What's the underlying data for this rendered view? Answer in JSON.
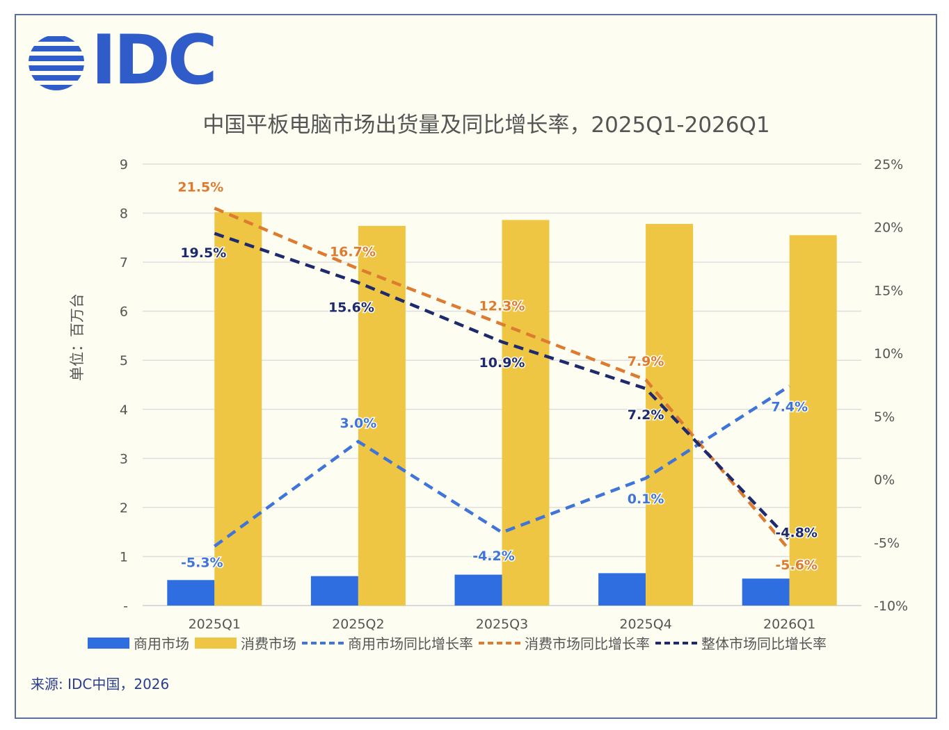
{
  "header": {
    "logo_text": "IDC"
  },
  "source_text": "来源: IDC中国，2026",
  "chart_data": {
    "type": "bar",
    "title": "中国平板电脑市场出货量及同比增长率，2025Q1-2026Q1",
    "ylabel": "单位：百万台",
    "categories": [
      "2025Q1",
      "2025Q2",
      "2025Q3",
      "2025Q4",
      "2026Q1"
    ],
    "left_axis": {
      "ylim": [
        0,
        9
      ],
      "tick_labels": [
        "-",
        "1",
        "2",
        "3",
        "4",
        "5",
        "6",
        "7",
        "8",
        "9"
      ]
    },
    "right_axis": {
      "ylim": [
        -10,
        25
      ],
      "tick_labels": [
        "-10%",
        "-5%",
        "0%",
        "5%",
        "10%",
        "15%",
        "20%",
        "25%"
      ]
    },
    "grid": true,
    "legend_position": "bottom",
    "bar_series": [
      {
        "name": "商用市场",
        "color": "#2f6ee0",
        "values": [
          0.52,
          0.6,
          0.63,
          0.66,
          0.55
        ]
      },
      {
        "name": "消费市场",
        "color": "#eec643",
        "values": [
          8.02,
          7.74,
          7.86,
          7.78,
          7.55
        ]
      }
    ],
    "line_series": [
      {
        "name": "商用市场同比增长率",
        "color": "#3f74d8",
        "values": [
          -5.3,
          3.0,
          -4.2,
          0.1,
          7.4
        ],
        "labels": [
          "-5.3%",
          "3.0%",
          "-4.2%",
          "0.1%",
          "7.4%"
        ]
      },
      {
        "name": "消费市场同比增长率",
        "color": "#dd7c30",
        "values": [
          21.5,
          16.7,
          12.3,
          7.9,
          -5.6
        ],
        "labels": [
          "21.5%",
          "16.7%",
          "12.3%",
          "7.9%",
          "-5.6%"
        ]
      },
      {
        "name": "整体市场同比增长率",
        "color": "#1d2a6e",
        "values": [
          19.5,
          15.6,
          10.9,
          7.2,
          -4.8
        ],
        "labels": [
          "19.5%",
          "15.6%",
          "10.9%",
          "7.2%",
          "-4.8%"
        ]
      }
    ]
  }
}
